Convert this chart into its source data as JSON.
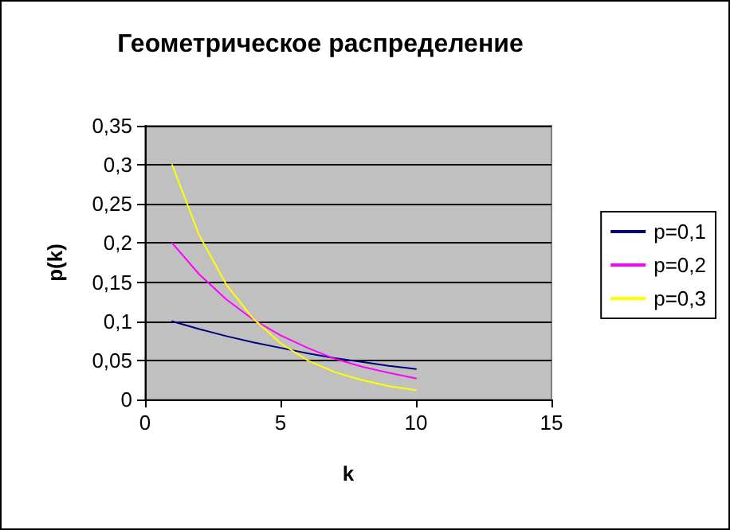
{
  "chart_data": {
    "type": "line",
    "title": "Геометрическое распределение",
    "xlabel": "k",
    "ylabel": "p(k)",
    "x": [
      1,
      2,
      3,
      4,
      5,
      6,
      7,
      8,
      9,
      10
    ],
    "series": [
      {
        "name": "p=0,1",
        "color": "#000080",
        "values": [
          0.1,
          0.09,
          0.081,
          0.073,
          0.066,
          0.059,
          0.053,
          0.048,
          0.043,
          0.039
        ]
      },
      {
        "name": "p=0,2",
        "color": "#ff00ff",
        "values": [
          0.2,
          0.16,
          0.128,
          0.102,
          0.082,
          0.066,
          0.052,
          0.042,
          0.034,
          0.027
        ]
      },
      {
        "name": "p=0,3",
        "color": "#ffff00",
        "values": [
          0.3,
          0.21,
          0.147,
          0.103,
          0.072,
          0.05,
          0.035,
          0.025,
          0.017,
          0.012
        ]
      }
    ],
    "xlim": [
      0,
      15
    ],
    "xticks": [
      0,
      5,
      10,
      15
    ],
    "ylim": [
      0,
      0.35
    ],
    "yticks": [
      0,
      {
        "value": 0.05,
        "label": "0,05"
      },
      {
        "value": 0.1,
        "label": "0,1"
      },
      {
        "value": 0.15,
        "label": "0,15"
      },
      {
        "value": 0.2,
        "label": "0,2"
      },
      {
        "value": 0.25,
        "label": "0,25"
      },
      {
        "value": 0.3,
        "label": "0,3"
      },
      {
        "value": 0.35,
        "label": "0,35"
      }
    ],
    "grid": "y",
    "legend": "right",
    "marker": "none",
    "line_style": "solid"
  }
}
